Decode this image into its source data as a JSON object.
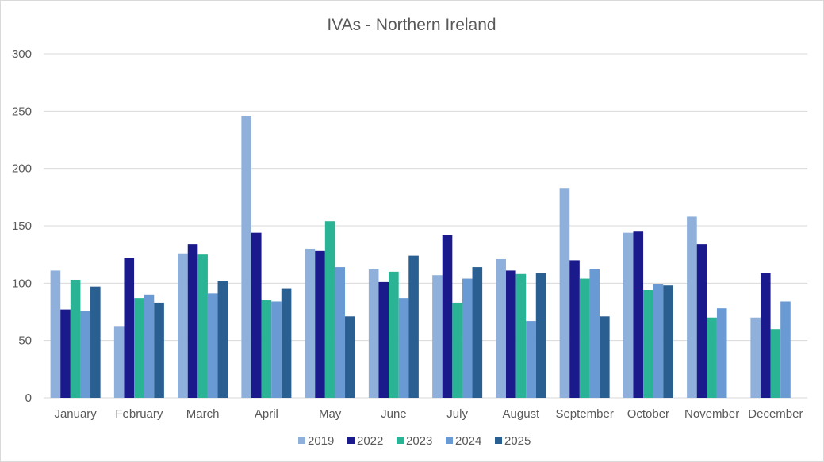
{
  "chart_data": {
    "type": "bar",
    "title": "IVAs - Northern Ireland",
    "xlabel": "",
    "ylabel": "",
    "ylim": [
      0,
      300
    ],
    "yticks": [
      0,
      50,
      100,
      150,
      200,
      250,
      300
    ],
    "grid": true,
    "legend_position": "bottom",
    "categories": [
      "January",
      "February",
      "March",
      "April",
      "May",
      "June",
      "July",
      "August",
      "September",
      "October",
      "November",
      "December"
    ],
    "series": [
      {
        "name": "2019",
        "color": "#8FB0DA",
        "values": [
          111,
          62,
          126,
          246,
          130,
          112,
          107,
          121,
          183,
          144,
          158,
          70
        ]
      },
      {
        "name": "2022",
        "color": "#1A1A8C",
        "values": [
          77,
          122,
          134,
          144,
          128,
          101,
          142,
          111,
          120,
          145,
          134,
          109
        ]
      },
      {
        "name": "2023",
        "color": "#2AB394",
        "values": [
          103,
          87,
          125,
          85,
          154,
          110,
          83,
          108,
          104,
          94,
          70,
          60
        ]
      },
      {
        "name": "2024",
        "color": "#6A9AD4",
        "values": [
          76,
          90,
          91,
          84,
          114,
          87,
          104,
          67,
          112,
          99,
          78,
          84
        ]
      },
      {
        "name": "2025",
        "color": "#2A5F91",
        "values": [
          97,
          83,
          102,
          95,
          71,
          124,
          114,
          109,
          71,
          98,
          null,
          null
        ]
      }
    ]
  }
}
